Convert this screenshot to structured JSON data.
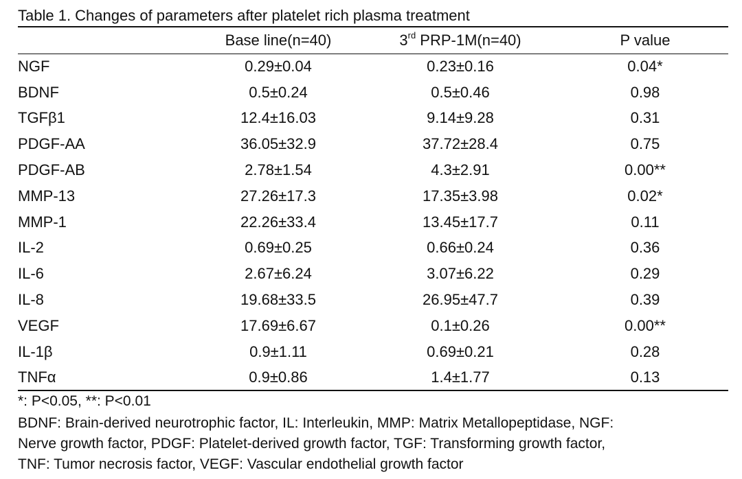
{
  "title": "Table 1. Changes of parameters after platelet rich plasma treatment",
  "columns": {
    "c0": "",
    "c1": "Base line(n=40)",
    "c2_prefix": "3",
    "c2_sup": "rd",
    "c2_suffix": " PRP-1M(n=40)",
    "c3": "P value"
  },
  "rows": [
    {
      "name": "NGF",
      "baseline": "0.29±0.04",
      "prp": "0.23±0.16",
      "p": "0.04*"
    },
    {
      "name": "BDNF",
      "baseline": "0.5±0.24",
      "prp": "0.5±0.46",
      "p": "0.98"
    },
    {
      "name": "TGFβ1",
      "baseline": "12.4±16.03",
      "prp": "9.14±9.28",
      "p": "0.31"
    },
    {
      "name": "PDGF-AA",
      "baseline": "36.05±32.9",
      "prp": "37.72±28.4",
      "p": "0.75"
    },
    {
      "name": "PDGF-AB",
      "baseline": "2.78±1.54",
      "prp": "4.3±2.91",
      "p": "0.00**"
    },
    {
      "name": "MMP-13",
      "baseline": "27.26±17.3",
      "prp": "17.35±3.98",
      "p": "0.02*"
    },
    {
      "name": "MMP-1",
      "baseline": "22.26±33.4",
      "prp": "13.45±17.7",
      "p": "0.11"
    },
    {
      "name": "IL-2",
      "baseline": "0.69±0.25",
      "prp": "0.66±0.24",
      "p": "0.36"
    },
    {
      "name": "IL-6",
      "baseline": "2.67±6.24",
      "prp": "3.07±6.22",
      "p": "0.29"
    },
    {
      "name": "IL-8",
      "baseline": "19.68±33.5",
      "prp": "26.95±47.7",
      "p": "0.39"
    },
    {
      "name": "VEGF",
      "baseline": "17.69±6.67",
      "prp": "0.1±0.26",
      "p": "0.00**"
    },
    {
      "name": "IL-1β",
      "baseline": "0.9±1.11",
      "prp": "0.69±0.21",
      "p": "0.28"
    },
    {
      "name": "TNFα",
      "baseline": "0.9±0.86",
      "prp": "1.4±1.77",
      "p": "0.13"
    }
  ],
  "footnotes": {
    "significance": "*: P<0.05, **: P<0.01",
    "abbr_line1": "BDNF: Brain-derived neurotrophic factor, IL: Interleukin, MMP: Matrix Metallopeptidase, NGF:",
    "abbr_line2": "Nerve growth factor, PDGF: Platelet-derived growth factor, TGF: Transforming growth factor,",
    "abbr_line3": "TNF: Tumor necrosis factor, VEGF: Vascular endothelial growth factor"
  }
}
